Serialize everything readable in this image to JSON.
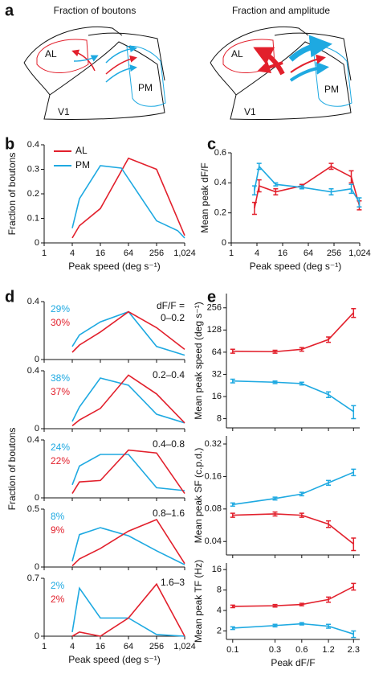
{
  "figure": {
    "panel_letters": [
      "a",
      "b",
      "c",
      "d",
      "e"
    ]
  },
  "panel_a": {
    "diagrams": [
      {
        "title": "Fraction of boutons",
        "al": "AL",
        "pm": "PM",
        "v1": "V1"
      },
      {
        "title": "Fraction and amplitude",
        "al": "AL",
        "pm": "PM",
        "v1": "V1"
      }
    ]
  },
  "chart_data": [
    {
      "type": "line",
      "xlabel": "Peak speed (deg s⁻¹)",
      "ylabel": "Fraction of boutons",
      "log_x": true,
      "xlim": [
        1,
        1024
      ],
      "xticks": [
        1,
        4,
        16,
        64,
        256,
        {
          "value": 1024,
          "label": "1,024"
        }
      ],
      "ylim": [
        0,
        0.4
      ],
      "yticks": [
        0,
        0.1,
        0.2,
        0.3,
        0.4
      ],
      "legend": "upper left",
      "series": [
        {
          "name": "AL",
          "color": "#e2202c",
          "x": [
            4,
            5.7,
            16,
            64,
            256,
            1024
          ],
          "values": [
            0.02,
            0.07,
            0.14,
            0.345,
            0.3,
            0.03
          ]
        },
        {
          "name": "PM",
          "color": "#1ea9e1",
          "x": [
            4,
            5.7,
            16,
            45,
            256,
            724,
            1024
          ],
          "values": [
            0.06,
            0.18,
            0.315,
            0.305,
            0.09,
            0.05,
            0.02
          ]
        }
      ]
    },
    {
      "type": "errorbar",
      "xlabel": "Peak speed (deg s⁻¹)",
      "ylabel": "Mean peak dF/F",
      "log_x": true,
      "xlim": [
        1,
        1024
      ],
      "xticks": [
        1,
        4,
        16,
        64,
        256,
        {
          "value": 1024,
          "label": "1,024"
        }
      ],
      "ylim": [
        0,
        0.6
      ],
      "yticks": [
        0,
        0.2,
        0.4,
        0.6
      ],
      "x": [
        3.5,
        4.5,
        11,
        45,
        220,
        650,
        1000
      ],
      "series": [
        {
          "color": "#e2202c",
          "values": [
            0.23,
            0.38,
            0.34,
            0.38,
            0.51,
            0.44,
            0.25
          ],
          "errors": [
            0.04,
            0.04,
            0.02,
            0.01,
            0.02,
            0.04,
            0.03
          ]
        },
        {
          "color": "#1ea9e1",
          "values": [
            0.35,
            0.51,
            0.39,
            0.37,
            0.34,
            0.36,
            0.27
          ],
          "errors": [
            0.03,
            0.02,
            0.01,
            0.01,
            0.02,
            0.03,
            0.03
          ]
        }
      ]
    },
    {
      "type": "line",
      "xlabel": "Peak speed (deg s⁻¹)",
      "ylabel": "Fraction of boutons",
      "log_x": true,
      "xlim": [
        1,
        1024
      ],
      "xticks": [
        1,
        4,
        16,
        64,
        256,
        {
          "value": 1024,
          "label": "1,024"
        }
      ],
      "x": [
        4,
        5.7,
        16,
        64,
        256,
        1024
      ],
      "subplots": [
        {
          "annotation": [
            "dF/F =",
            "0–0.2"
          ],
          "ylim": [
            0,
            0.4
          ],
          "yticks": [
            0,
            0.4
          ],
          "series": [
            {
              "color": "#1ea9e1",
              "label": "29%",
              "values": [
                0.09,
                0.17,
                0.26,
                0.33,
                0.09,
                0.03
              ]
            },
            {
              "color": "#e2202c",
              "label": "30%",
              "values": [
                0.05,
                0.1,
                0.19,
                0.33,
                0.22,
                0.07
              ]
            }
          ]
        },
        {
          "annotation": [
            "0.2–0.4"
          ],
          "ylim": [
            0,
            0.4
          ],
          "yticks": [
            0,
            0.4
          ],
          "series": [
            {
              "color": "#1ea9e1",
              "label": "38%",
              "values": [
                0.05,
                0.15,
                0.35,
                0.3,
                0.1,
                0.04
              ]
            },
            {
              "color": "#e2202c",
              "label": "37%",
              "values": [
                0.02,
                0.06,
                0.14,
                0.37,
                0.24,
                0.04
              ]
            }
          ]
        },
        {
          "annotation": [
            "0.4–0.8"
          ],
          "ylim": [
            0,
            0.4
          ],
          "yticks": [
            0,
            0.4
          ],
          "series": [
            {
              "color": "#1ea9e1",
              "label": "24%",
              "values": [
                0.09,
                0.22,
                0.3,
                0.3,
                0.07,
                0.05
              ]
            },
            {
              "color": "#e2202c",
              "label": "22%",
              "values": [
                0.03,
                0.11,
                0.12,
                0.33,
                0.31,
                0.03
              ]
            }
          ]
        },
        {
          "annotation": [
            "0.8–1.6"
          ],
          "ylim": [
            0,
            0.5
          ],
          "yticks": [
            0,
            0.5
          ],
          "series": [
            {
              "color": "#1ea9e1",
              "label": "8%",
              "values": [
                0.05,
                0.28,
                0.34,
                0.27,
                0.14,
                0.02
              ]
            },
            {
              "color": "#e2202c",
              "label": "9%",
              "values": [
                0.01,
                0.07,
                0.16,
                0.31,
                0.41,
                0.03
              ]
            }
          ]
        },
        {
          "annotation": [
            "1.6–3"
          ],
          "ylim": [
            0,
            0.7
          ],
          "yticks": [
            0,
            0.7
          ],
          "series": [
            {
              "color": "#1ea9e1",
              "label": "2%",
              "values": [
                0.05,
                0.58,
                0.22,
                0.22,
                0.02,
                0
              ]
            },
            {
              "color": "#e2202c",
              "label": "2%",
              "values": [
                0,
                0.05,
                0,
                0.22,
                0.63,
                0
              ]
            }
          ]
        }
      ]
    },
    {
      "type": "errorbar",
      "xlabel": "Peak dF/F",
      "log_x": true,
      "xlim": [
        0.085,
        2.7
      ],
      "xticks": [
        0.1,
        0.3,
        0.6,
        1.2,
        2.3
      ],
      "x": [
        0.1,
        0.3,
        0.6,
        1.2,
        2.3
      ],
      "subplots": [
        {
          "ylabel": "Mean peak speed (deg s⁻¹)",
          "log_y": true,
          "ylim": [
            6,
            400
          ],
          "yticks": [
            8,
            16,
            32,
            64,
            128,
            256
          ],
          "series": [
            {
              "color": "#e2202c",
              "values": [
                66,
                65,
                70,
                95,
                220
              ],
              "errors": [
                4,
                3,
                4,
                8,
                30
              ]
            },
            {
              "color": "#1ea9e1",
              "values": [
                26,
                25,
                24,
                17,
                10
              ],
              "errors": [
                1.5,
                1,
                1,
                1.5,
                2
              ]
            }
          ]
        },
        {
          "ylabel": "Mean peak SF (c.p.d.)",
          "log_y": true,
          "ylim": [
            0.03,
            0.38
          ],
          "yticks": [
            0.04,
            0.08,
            0.16,
            0.32
          ],
          "series": [
            {
              "color": "#e2202c",
              "values": [
                0.07,
                0.072,
                0.07,
                0.058,
                0.038
              ],
              "errors": [
                0.003,
                0.003,
                0.003,
                0.004,
                0.005
              ]
            },
            {
              "color": "#1ea9e1",
              "values": [
                0.088,
                0.1,
                0.11,
                0.14,
                0.175
              ],
              "errors": [
                0.003,
                0.003,
                0.004,
                0.007,
                0.012
              ]
            }
          ]
        },
        {
          "ylabel": "Mean peak TF (Hz)",
          "log_y": true,
          "ylim": [
            1.5,
            20
          ],
          "yticks": [
            2,
            4,
            8,
            16
          ],
          "series": [
            {
              "color": "#e2202c",
              "values": [
                4.6,
                4.7,
                4.9,
                5.8,
                9
              ],
              "errors": [
                0.2,
                0.2,
                0.2,
                0.5,
                1
              ]
            },
            {
              "color": "#1ea9e1",
              "values": [
                2.2,
                2.4,
                2.55,
                2.35,
                1.8
              ],
              "errors": [
                0.1,
                0.1,
                0.1,
                0.15,
                0.2
              ]
            }
          ]
        }
      ]
    }
  ]
}
